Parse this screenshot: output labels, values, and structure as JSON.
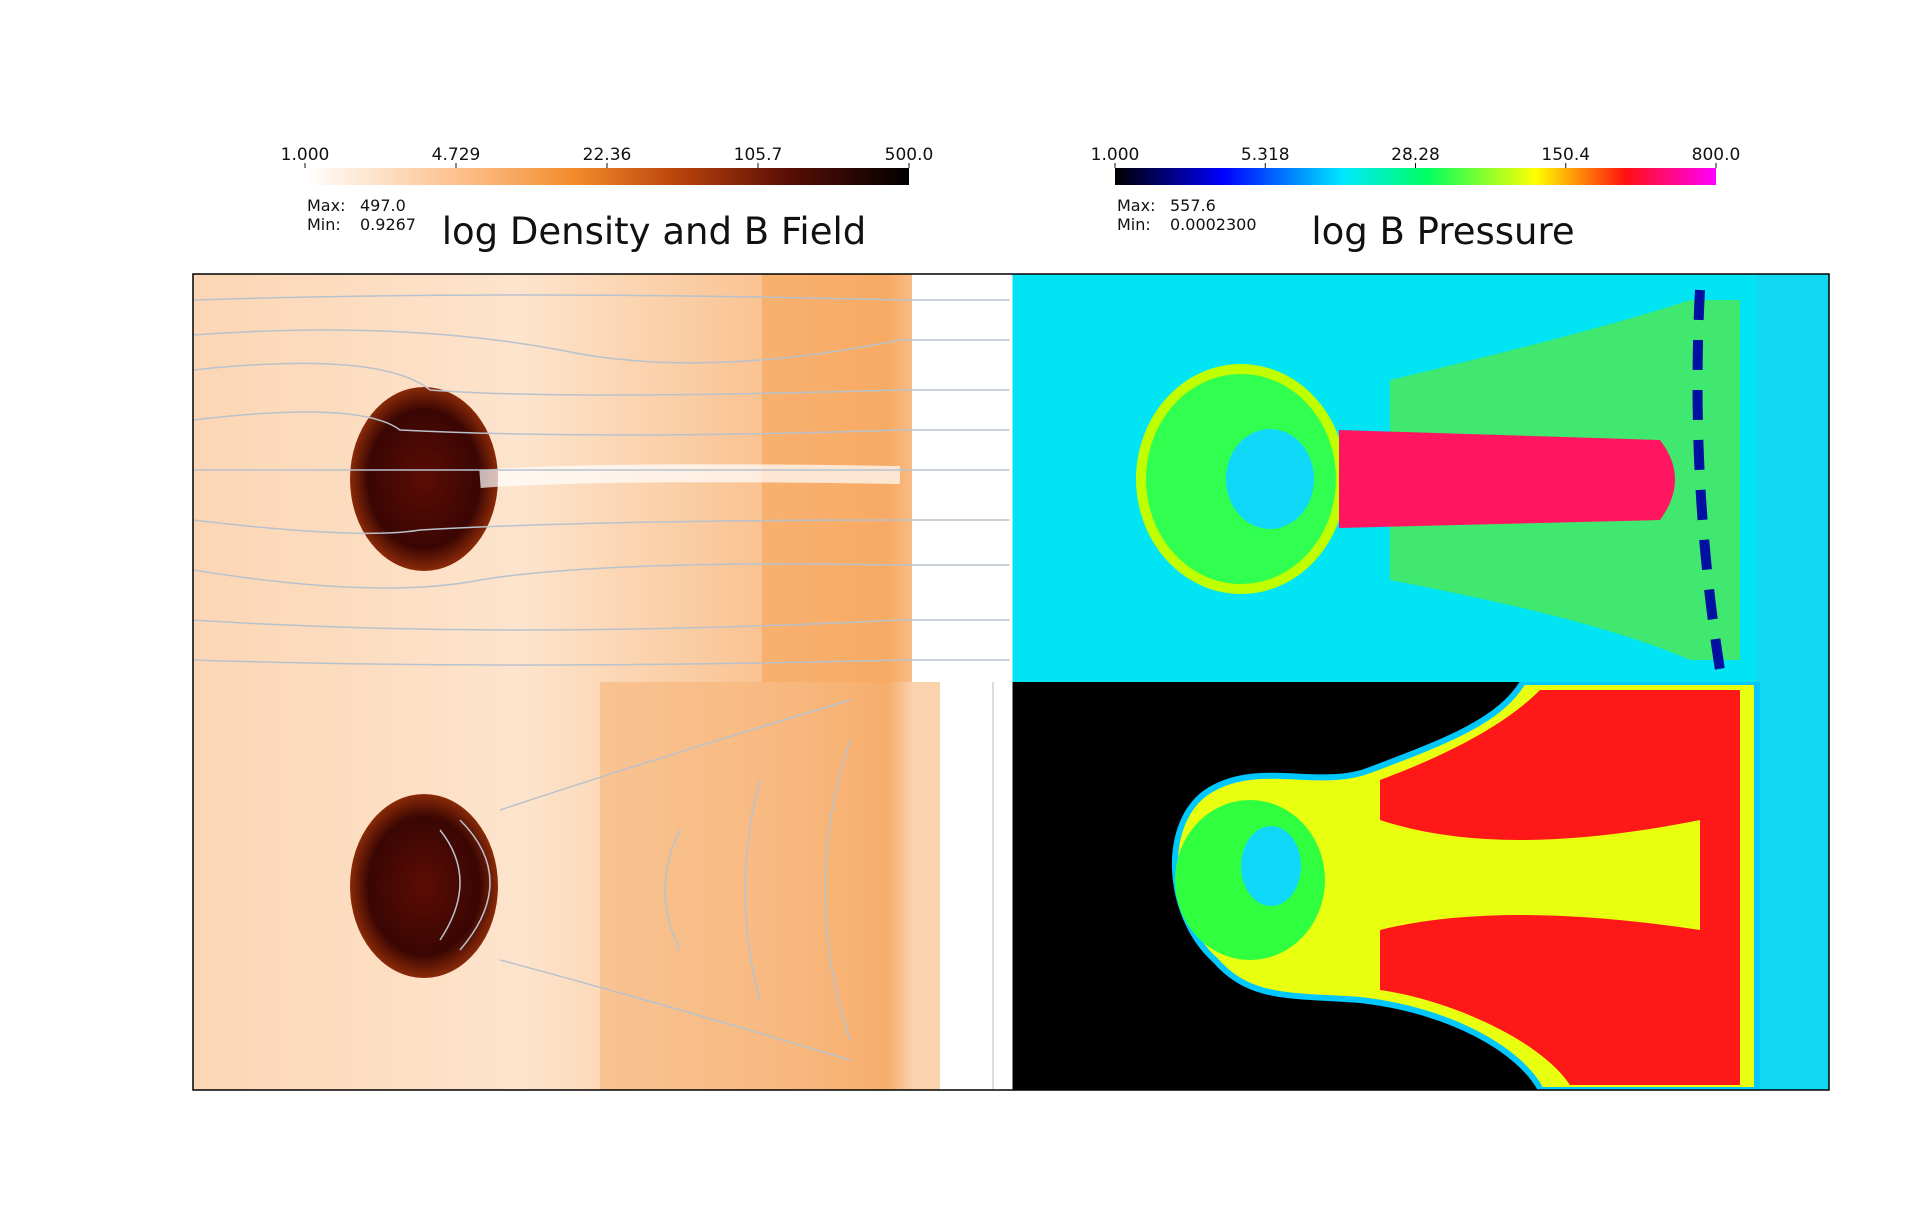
{
  "panels": [
    {
      "title": "log Density and B Field",
      "colorbar_ticks": [
        "1.000",
        "4.729",
        "22.36",
        "105.7",
        "500.0"
      ],
      "max_label": "Max:",
      "max": "497.0",
      "min_label": "Min:",
      "min": "0.9267"
    },
    {
      "title": "log B Pressure",
      "colorbar_ticks": [
        "1.000",
        "5.318",
        "28.28",
        "150.4",
        "800.0"
      ],
      "max_label": "Max:",
      "max": "557.6",
      "min_label": "Min:",
      "min": "0.0002300"
    }
  ]
}
